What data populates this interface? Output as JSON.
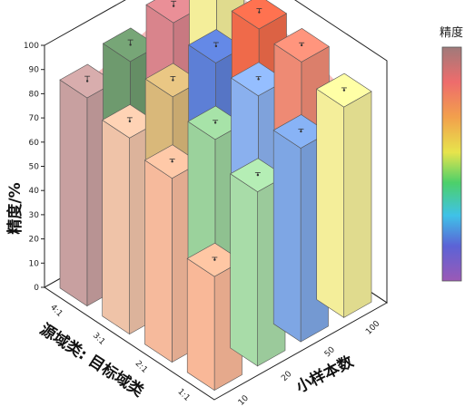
{
  "chart_data": {
    "type": "bar3d",
    "title": "",
    "zlabel": "精度/%",
    "xlabel": "小样本数",
    "ylabel": "源域类: 目标域类",
    "zlim": [
      0,
      100
    ],
    "z_ticks": [
      "0",
      "10",
      "20",
      "30",
      "40",
      "50",
      "60",
      "70",
      "80",
      "90",
      "100"
    ],
    "x_categories": [
      "10",
      "20",
      "50",
      "100"
    ],
    "y_categories": [
      "4:1",
      "3:1",
      "2:1",
      "1:1"
    ],
    "series": [
      {
        "name": "4:1",
        "values": [
          86,
          91,
          97,
          100
        ]
      },
      {
        "name": "3:1",
        "values": [
          81,
          88,
          92,
          96
        ]
      },
      {
        "name": "2:1",
        "values": [
          76,
          82,
          90,
          94
        ]
      },
      {
        "name": "1:1",
        "values": [
          47,
          72,
          80,
          87
        ]
      }
    ],
    "error": [
      2,
      1.5,
      1,
      1
    ],
    "colorbar": {
      "title": "精度",
      "position": "right"
    },
    "bar_colors": {
      "4:1": [
        "#c8a0a0",
        "#6e9a6e",
        "#d9848c",
        "#f4ee9a"
      ],
      "3:1": [
        "#efc3a8",
        "#d9b87a",
        "#5d7fd6",
        "#ef6a4a"
      ],
      "2:1": [
        "#f6ba9c",
        "#9bd29c",
        "#8ab0ee",
        "#ee8a74"
      ],
      "1:1": [
        "#f9b898",
        "#a8dca8",
        "#7ea6e4",
        "#f4ee9a"
      ]
    }
  }
}
